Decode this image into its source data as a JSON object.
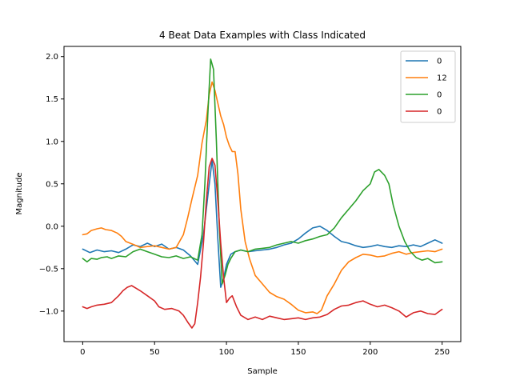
{
  "chart_data": {
    "type": "line",
    "title": "4 Beat Data Examples with Class Indicated",
    "xlabel": "Sample",
    "ylabel": "Magnitude",
    "xlim": [
      -13,
      263
    ],
    "ylim": [
      -1.36,
      2.12
    ],
    "xticks": [
      0,
      50,
      100,
      150,
      200,
      250
    ],
    "yticks": [
      -1.0,
      -0.5,
      0.0,
      0.5,
      1.0,
      1.5,
      2.0
    ],
    "ytick_labels": [
      "−1.0",
      "−0.5",
      "0.0",
      "0.5",
      "1.0",
      "1.5",
      "2.0"
    ],
    "grid": false,
    "legend_position": "top-right",
    "series": [
      {
        "name": "0",
        "color": "#1f77b4",
        "points": [
          [
            0,
            -0.27
          ],
          [
            5,
            -0.31
          ],
          [
            10,
            -0.28
          ],
          [
            15,
            -0.3
          ],
          [
            20,
            -0.29
          ],
          [
            25,
            -0.31
          ],
          [
            30,
            -0.27
          ],
          [
            35,
            -0.22
          ],
          [
            40,
            -0.24
          ],
          [
            45,
            -0.2
          ],
          [
            50,
            -0.24
          ],
          [
            55,
            -0.21
          ],
          [
            60,
            -0.27
          ],
          [
            65,
            -0.25
          ],
          [
            70,
            -0.28
          ],
          [
            75,
            -0.35
          ],
          [
            80,
            -0.45
          ],
          [
            84,
            -0.1
          ],
          [
            87,
            0.35
          ],
          [
            90,
            0.78
          ],
          [
            92,
            0.5
          ],
          [
            94,
            -0.15
          ],
          [
            96,
            -0.72
          ],
          [
            98,
            -0.62
          ],
          [
            100,
            -0.45
          ],
          [
            103,
            -0.33
          ],
          [
            106,
            -0.3
          ],
          [
            110,
            -0.28
          ],
          [
            115,
            -0.3
          ],
          [
            120,
            -0.29
          ],
          [
            125,
            -0.28
          ],
          [
            130,
            -0.27
          ],
          [
            135,
            -0.25
          ],
          [
            140,
            -0.22
          ],
          [
            145,
            -0.2
          ],
          [
            150,
            -0.15
          ],
          [
            155,
            -0.08
          ],
          [
            160,
            -0.02
          ],
          [
            165,
            0.0
          ],
          [
            170,
            -0.05
          ],
          [
            175,
            -0.12
          ],
          [
            180,
            -0.18
          ],
          [
            185,
            -0.2
          ],
          [
            190,
            -0.23
          ],
          [
            195,
            -0.25
          ],
          [
            200,
            -0.24
          ],
          [
            205,
            -0.22
          ],
          [
            210,
            -0.24
          ],
          [
            215,
            -0.25
          ],
          [
            220,
            -0.23
          ],
          [
            225,
            -0.24
          ],
          [
            230,
            -0.22
          ],
          [
            235,
            -0.24
          ],
          [
            240,
            -0.2
          ],
          [
            245,
            -0.16
          ],
          [
            250,
            -0.2
          ]
        ]
      },
      {
        "name": "12",
        "color": "#ff7f0e",
        "points": [
          [
            0,
            -0.1
          ],
          [
            3,
            -0.09
          ],
          [
            6,
            -0.05
          ],
          [
            10,
            -0.03
          ],
          [
            13,
            -0.02
          ],
          [
            16,
            -0.04
          ],
          [
            20,
            -0.05
          ],
          [
            24,
            -0.08
          ],
          [
            27,
            -0.12
          ],
          [
            30,
            -0.18
          ],
          [
            33,
            -0.2
          ],
          [
            36,
            -0.22
          ],
          [
            40,
            -0.25
          ],
          [
            45,
            -0.24
          ],
          [
            50,
            -0.23
          ],
          [
            55,
            -0.25
          ],
          [
            60,
            -0.27
          ],
          [
            65,
            -0.25
          ],
          [
            70,
            -0.1
          ],
          [
            73,
            0.1
          ],
          [
            76,
            0.32
          ],
          [
            80,
            0.6
          ],
          [
            83,
            0.98
          ],
          [
            86,
            1.25
          ],
          [
            88,
            1.55
          ],
          [
            90,
            1.7
          ],
          [
            92,
            1.6
          ],
          [
            94,
            1.45
          ],
          [
            96,
            1.3
          ],
          [
            98,
            1.2
          ],
          [
            100,
            1.05
          ],
          [
            102,
            0.95
          ],
          [
            104,
            0.88
          ],
          [
            106,
            0.88
          ],
          [
            108,
            0.62
          ],
          [
            110,
            0.2
          ],
          [
            113,
            -0.18
          ],
          [
            116,
            -0.38
          ],
          [
            120,
            -0.58
          ],
          [
            125,
            -0.68
          ],
          [
            130,
            -0.78
          ],
          [
            135,
            -0.83
          ],
          [
            140,
            -0.86
          ],
          [
            145,
            -0.92
          ],
          [
            150,
            -0.99
          ],
          [
            155,
            -1.02
          ],
          [
            160,
            -1.01
          ],
          [
            163,
            -1.03
          ],
          [
            166,
            -0.99
          ],
          [
            170,
            -0.82
          ],
          [
            175,
            -0.68
          ],
          [
            180,
            -0.52
          ],
          [
            185,
            -0.42
          ],
          [
            190,
            -0.37
          ],
          [
            195,
            -0.33
          ],
          [
            200,
            -0.34
          ],
          [
            205,
            -0.36
          ],
          [
            210,
            -0.35
          ],
          [
            215,
            -0.32
          ],
          [
            220,
            -0.3
          ],
          [
            225,
            -0.33
          ],
          [
            230,
            -0.31
          ],
          [
            235,
            -0.3
          ],
          [
            240,
            -0.29
          ],
          [
            245,
            -0.3
          ],
          [
            250,
            -0.27
          ]
        ]
      },
      {
        "name": "0",
        "color": "#2ca02c",
        "points": [
          [
            0,
            -0.38
          ],
          [
            3,
            -0.42
          ],
          [
            6,
            -0.38
          ],
          [
            10,
            -0.39
          ],
          [
            13,
            -0.37
          ],
          [
            17,
            -0.36
          ],
          [
            20,
            -0.38
          ],
          [
            25,
            -0.35
          ],
          [
            30,
            -0.36
          ],
          [
            35,
            -0.3
          ],
          [
            40,
            -0.27
          ],
          [
            45,
            -0.3
          ],
          [
            50,
            -0.33
          ],
          [
            55,
            -0.36
          ],
          [
            60,
            -0.37
          ],
          [
            65,
            -0.35
          ],
          [
            70,
            -0.38
          ],
          [
            75,
            -0.36
          ],
          [
            80,
            -0.4
          ],
          [
            83,
            -0.1
          ],
          [
            85,
            0.5
          ],
          [
            87,
            1.3
          ],
          [
            89,
            1.97
          ],
          [
            91,
            1.85
          ],
          [
            93,
            1.0
          ],
          [
            95,
            0.0
          ],
          [
            97,
            -0.68
          ],
          [
            99,
            -0.58
          ],
          [
            101,
            -0.45
          ],
          [
            103,
            -0.38
          ],
          [
            106,
            -0.3
          ],
          [
            110,
            -0.28
          ],
          [
            115,
            -0.3
          ],
          [
            120,
            -0.27
          ],
          [
            125,
            -0.26
          ],
          [
            130,
            -0.25
          ],
          [
            135,
            -0.22
          ],
          [
            140,
            -0.2
          ],
          [
            145,
            -0.18
          ],
          [
            150,
            -0.2
          ],
          [
            155,
            -0.17
          ],
          [
            160,
            -0.15
          ],
          [
            165,
            -0.12
          ],
          [
            170,
            -0.1
          ],
          [
            175,
            -0.02
          ],
          [
            180,
            0.1
          ],
          [
            185,
            0.2
          ],
          [
            190,
            0.3
          ],
          [
            195,
            0.42
          ],
          [
            200,
            0.5
          ],
          [
            203,
            0.64
          ],
          [
            206,
            0.67
          ],
          [
            210,
            0.6
          ],
          [
            213,
            0.5
          ],
          [
            216,
            0.25
          ],
          [
            220,
            0.0
          ],
          [
            224,
            -0.18
          ],
          [
            228,
            -0.3
          ],
          [
            232,
            -0.37
          ],
          [
            236,
            -0.4
          ],
          [
            240,
            -0.38
          ],
          [
            245,
            -0.43
          ],
          [
            250,
            -0.42
          ]
        ]
      },
      {
        "name": "0",
        "color": "#d62728",
        "points": [
          [
            0,
            -0.95
          ],
          [
            3,
            -0.97
          ],
          [
            6,
            -0.95
          ],
          [
            10,
            -0.93
          ],
          [
            15,
            -0.92
          ],
          [
            20,
            -0.9
          ],
          [
            25,
            -0.82
          ],
          [
            28,
            -0.76
          ],
          [
            31,
            -0.72
          ],
          [
            34,
            -0.7
          ],
          [
            37,
            -0.73
          ],
          [
            40,
            -0.76
          ],
          [
            45,
            -0.82
          ],
          [
            50,
            -0.88
          ],
          [
            53,
            -0.95
          ],
          [
            57,
            -0.98
          ],
          [
            62,
            -0.97
          ],
          [
            67,
            -1.0
          ],
          [
            70,
            -1.05
          ],
          [
            73,
            -1.13
          ],
          [
            76,
            -1.2
          ],
          [
            78,
            -1.15
          ],
          [
            80,
            -0.9
          ],
          [
            82,
            -0.6
          ],
          [
            84,
            -0.2
          ],
          [
            86,
            0.3
          ],
          [
            88,
            0.7
          ],
          [
            90,
            0.8
          ],
          [
            92,
            0.72
          ],
          [
            94,
            0.3
          ],
          [
            96,
            -0.2
          ],
          [
            98,
            -0.6
          ],
          [
            100,
            -0.9
          ],
          [
            102,
            -0.85
          ],
          [
            104,
            -0.82
          ],
          [
            107,
            -0.95
          ],
          [
            110,
            -1.05
          ],
          [
            115,
            -1.1
          ],
          [
            120,
            -1.07
          ],
          [
            125,
            -1.1
          ],
          [
            130,
            -1.06
          ],
          [
            135,
            -1.08
          ],
          [
            140,
            -1.1
          ],
          [
            145,
            -1.09
          ],
          [
            150,
            -1.08
          ],
          [
            155,
            -1.1
          ],
          [
            160,
            -1.08
          ],
          [
            165,
            -1.07
          ],
          [
            170,
            -1.04
          ],
          [
            175,
            -0.98
          ],
          [
            180,
            -0.94
          ],
          [
            185,
            -0.93
          ],
          [
            190,
            -0.9
          ],
          [
            195,
            -0.88
          ],
          [
            200,
            -0.92
          ],
          [
            205,
            -0.95
          ],
          [
            210,
            -0.93
          ],
          [
            215,
            -0.96
          ],
          [
            220,
            -1.0
          ],
          [
            225,
            -1.07
          ],
          [
            230,
            -1.02
          ],
          [
            235,
            -1.0
          ],
          [
            240,
            -1.03
          ],
          [
            245,
            -1.04
          ],
          [
            250,
            -0.98
          ]
        ]
      }
    ]
  }
}
